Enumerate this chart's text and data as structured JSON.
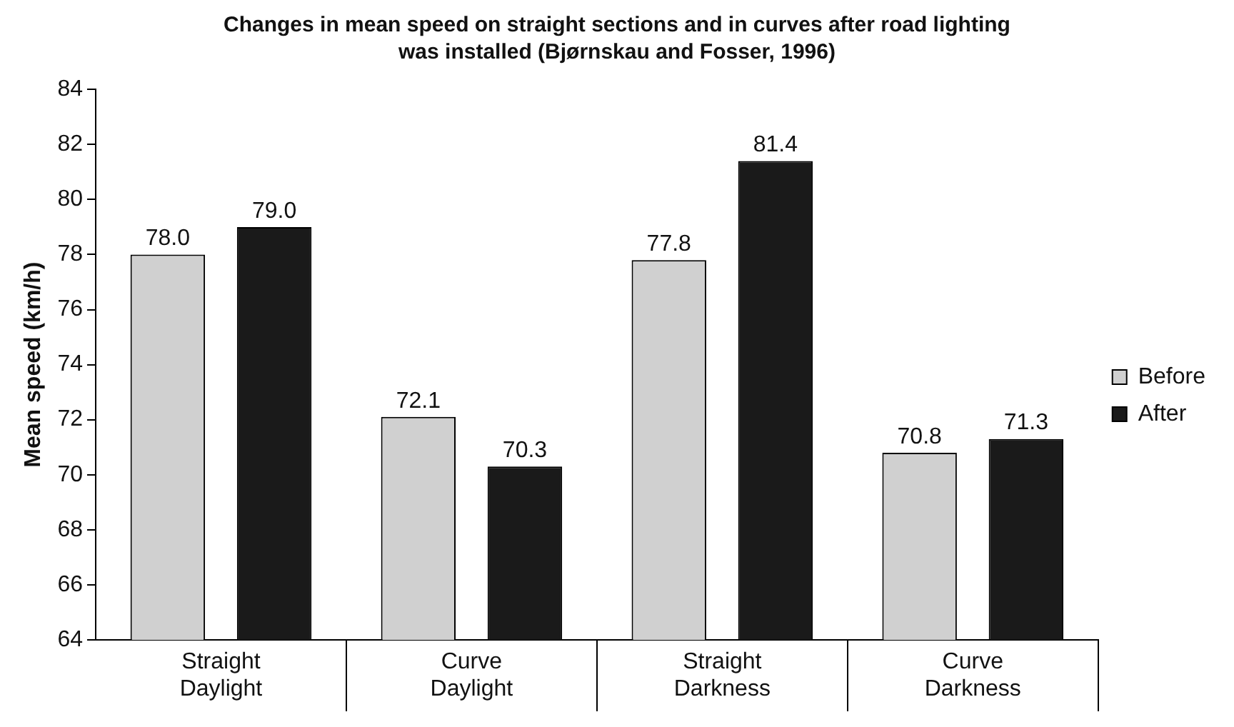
{
  "chart_data": {
    "type": "bar",
    "title": "Changes in mean speed on straight sections and in curves after road lighting was installed (Bjørnskau and Fosser, 1996)",
    "ylabel": "Mean speed (km/h)",
    "categories": [
      "Straight Daylight",
      "Curve Daylight",
      "Straight Darkness",
      "Curve Darkness"
    ],
    "series": [
      {
        "name": "Before",
        "color": "#d0d0d0",
        "values": [
          78.0,
          72.1,
          77.8,
          70.8
        ],
        "value_labels": [
          "78.0",
          "72.1",
          "77.8",
          "70.8"
        ]
      },
      {
        "name": "After",
        "color": "#1a1a1a",
        "values": [
          79.0,
          70.3,
          81.4,
          71.3
        ],
        "value_labels": [
          "79.0",
          "70.3",
          "81.4",
          "71.3"
        ]
      }
    ],
    "ylim": [
      64,
      84
    ],
    "yticks": [
      64,
      66,
      68,
      70,
      72,
      74,
      76,
      78,
      80,
      82,
      84
    ],
    "grid": false,
    "legend": "right"
  }
}
